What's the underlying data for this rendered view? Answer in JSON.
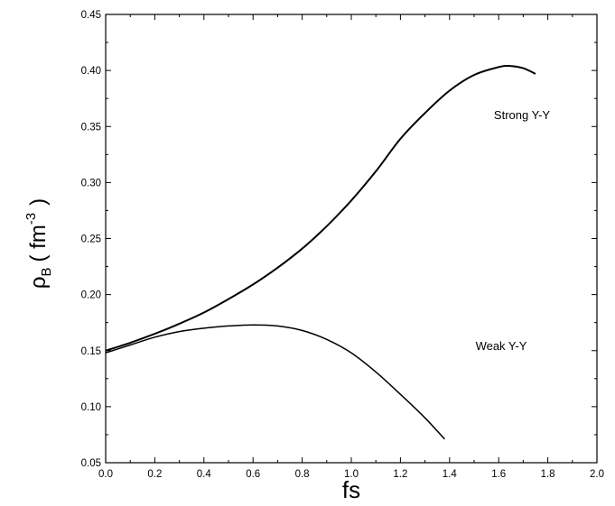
{
  "chart_data": {
    "type": "line",
    "xlabel": "fs",
    "ylabel": {
      "main": "ρ",
      "sub": "B",
      "open": "( fm",
      "sup": "-3",
      "close": ")"
    },
    "xlim": [
      0.0,
      2.0
    ],
    "ylim": [
      0.05,
      0.45
    ],
    "x_ticks": [
      "0.0",
      "0.2",
      "0.4",
      "0.6",
      "0.8",
      "1.0",
      "1.2",
      "1.4",
      "1.6",
      "1.8",
      "2.0"
    ],
    "y_ticks": [
      "0.05",
      "0.10",
      "0.15",
      "0.20",
      "0.25",
      "0.30",
      "0.35",
      "0.40",
      "0.45"
    ],
    "grid": false,
    "legend": "none",
    "series": [
      {
        "name": "Strong Y-Y",
        "color": "#000000",
        "x": [
          0.0,
          0.1,
          0.2,
          0.3,
          0.4,
          0.5,
          0.6,
          0.7,
          0.8,
          0.9,
          1.0,
          1.1,
          1.2,
          1.3,
          1.4,
          1.5,
          1.6,
          1.65,
          1.7,
          1.75
        ],
        "y": [
          0.15,
          0.157,
          0.165,
          0.174,
          0.184,
          0.196,
          0.209,
          0.224,
          0.241,
          0.261,
          0.284,
          0.31,
          0.339,
          0.362,
          0.382,
          0.396,
          0.403,
          0.404,
          0.402,
          0.397
        ]
      },
      {
        "name": "Weak Y-Y",
        "color": "#000000",
        "x": [
          0.0,
          0.1,
          0.2,
          0.3,
          0.4,
          0.5,
          0.6,
          0.7,
          0.8,
          0.9,
          1.0,
          1.1,
          1.2,
          1.3,
          1.38
        ],
        "y": [
          0.148,
          0.155,
          0.162,
          0.167,
          0.17,
          0.172,
          0.173,
          0.172,
          0.168,
          0.16,
          0.148,
          0.131,
          0.111,
          0.09,
          0.071
        ]
      }
    ],
    "annotations": [
      "Strong Y-Y",
      "Weak Y-Y"
    ]
  }
}
